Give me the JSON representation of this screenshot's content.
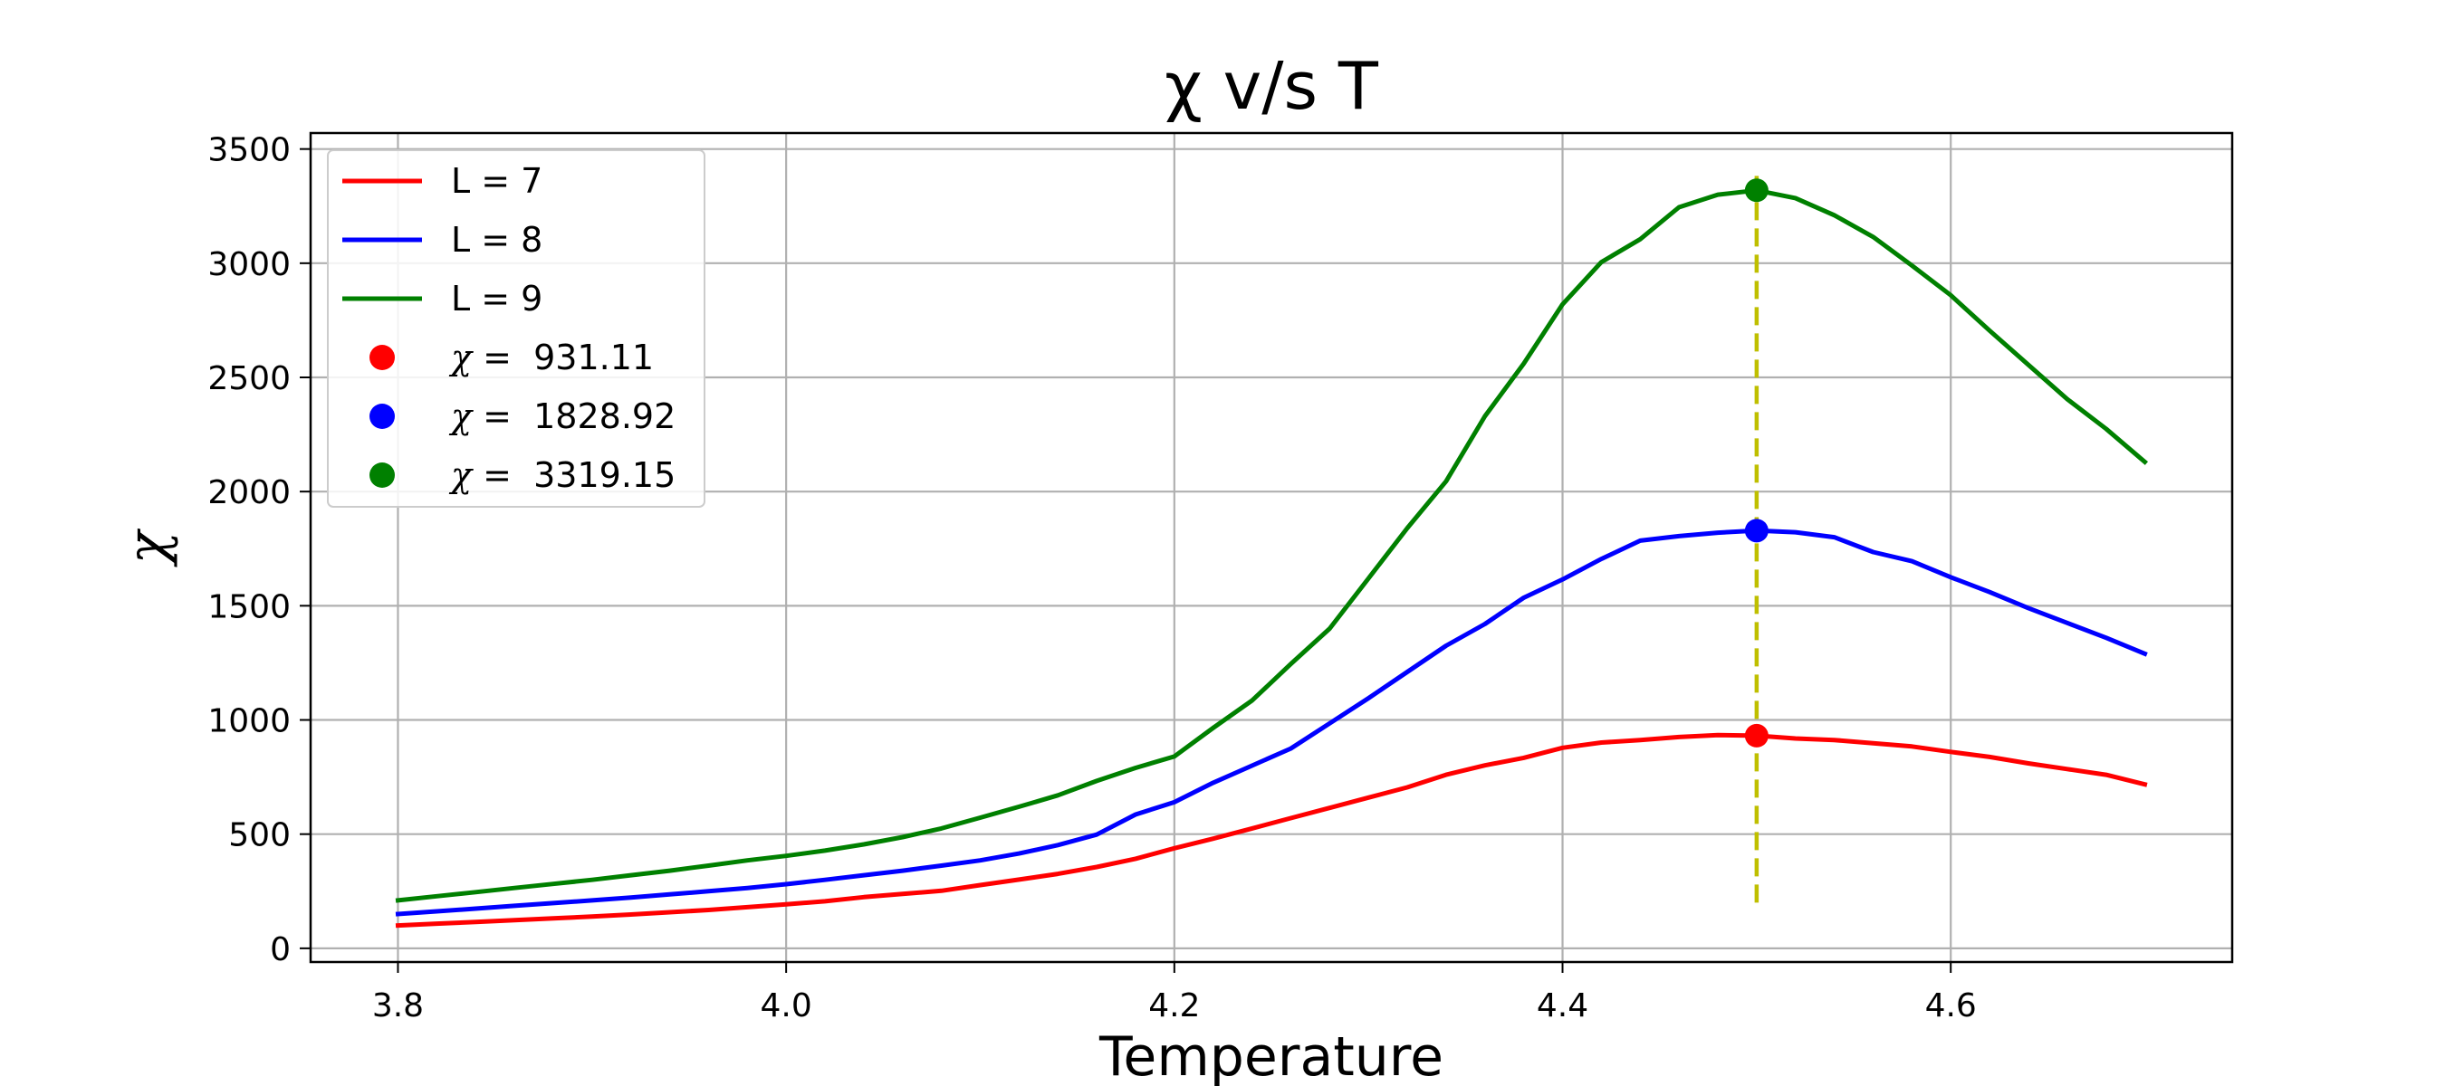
{
  "chart_data": {
    "type": "line",
    "title": "χ v/s T",
    "xlabel": "Temperature",
    "ylabel": "χ",
    "xlim": [
      3.755,
      4.745
    ],
    "ylim": [
      -60,
      3570
    ],
    "xticks": [
      3.8,
      4.0,
      4.2,
      4.4,
      4.6
    ],
    "xtick_labels": [
      "3.8",
      "4.0",
      "4.2",
      "4.4",
      "4.6"
    ],
    "yticks": [
      0,
      500,
      1000,
      1500,
      2000,
      2500,
      3000,
      3500
    ],
    "ytick_labels": [
      "0",
      "500",
      "1000",
      "1500",
      "2000",
      "2500",
      "3000",
      "3500"
    ],
    "grid": true,
    "legend_position": "upper-left",
    "x": [
      3.8,
      3.82,
      3.84,
      3.86,
      3.88,
      3.9,
      3.92,
      3.94,
      3.96,
      3.98,
      4.0,
      4.02,
      4.04,
      4.06,
      4.08,
      4.1,
      4.12,
      4.14,
      4.16,
      4.18,
      4.2,
      4.22,
      4.24,
      4.26,
      4.28,
      4.3,
      4.32,
      4.34,
      4.36,
      4.38,
      4.4,
      4.42,
      4.44,
      4.46,
      4.48,
      4.5,
      4.52,
      4.54,
      4.56,
      4.58,
      4.6,
      4.62,
      4.64,
      4.66,
      4.68,
      4.7
    ],
    "series": [
      {
        "name": "L = 7",
        "color": "#ff0000",
        "values": [
          100,
          108,
          115,
          123,
          131,
          139,
          148,
          158,
          168,
          180,
          193,
          206,
          224,
          238,
          252,
          277,
          301,
          326,
          356,
          392,
          438,
          480,
          525,
          570,
          615,
          660,
          705,
          760,
          801,
          834,
          878,
          901,
          912,
          925,
          934,
          931,
          919,
          912,
          898,
          884,
          860,
          838,
          810,
          785,
          760,
          718
        ]
      },
      {
        "name": "L = 8",
        "color": "#0000ff",
        "values": [
          150,
          162,
          174,
          186,
          198,
          210,
          222,
          236,
          250,
          264,
          281,
          300,
          320,
          340,
          362,
          385,
          415,
          452,
          498,
          586,
          640,
          725,
          800,
          875,
          985,
          1095,
          1210,
          1325,
          1420,
          1535,
          1615,
          1705,
          1785,
          1805,
          1820,
          1828.92,
          1822,
          1800,
          1735,
          1695,
          1625,
          1560,
          1490,
          1425,
          1360,
          1290
        ]
      },
      {
        "name": "L = 9",
        "color": "#008000",
        "values": [
          210,
          228,
          246,
          264,
          282,
          300,
          320,
          340,
          362,
          385,
          405,
          428,
          455,
          487,
          525,
          572,
          620,
          670,
          733,
          790,
          840,
          965,
          1085,
          1245,
          1400,
          1620,
          1840,
          2045,
          2330,
          2560,
          2820,
          3005,
          3105,
          3245,
          3300,
          3319.15,
          3285,
          3210,
          3115,
          2990,
          2860,
          2705,
          2555,
          2405,
          2275,
          2130
        ]
      }
    ],
    "peaks": [
      {
        "label": "χ =  931.11",
        "x": 4.5,
        "y": 931.11,
        "color": "#ff0000"
      },
      {
        "label": "χ =  1828.92",
        "x": 4.5,
        "y": 1828.92,
        "color": "#0000ff"
      },
      {
        "label": "χ =  3319.15",
        "x": 4.5,
        "y": 3319.15,
        "color": "#008000"
      }
    ],
    "vline": {
      "x": 4.5,
      "y_from": 200,
      "y_to": 3400,
      "color": "#bfbf00",
      "style": "dashed"
    }
  }
}
